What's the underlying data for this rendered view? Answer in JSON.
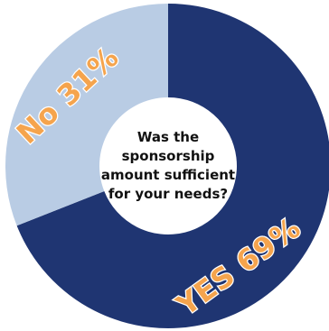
{
  "chart_data": {
    "type": "pie",
    "variant": "donut",
    "center_label": [
      "Was the",
      "sponsorship",
      "amount sufficient",
      "for your needs?"
    ],
    "slices": [
      {
        "label": "YES 69%",
        "category": "YES",
        "value": 69,
        "color": "#1f3572",
        "text_color": "#f5a44d"
      },
      {
        "label": "No 31%",
        "category": "No",
        "value": 31,
        "color": "#b9cce4",
        "text_color": "#f5a44d"
      }
    ],
    "legend": "none"
  }
}
